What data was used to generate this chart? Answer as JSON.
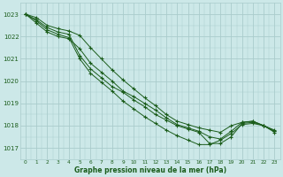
{
  "xlabel": "Graphe pression niveau de la mer (hPa)",
  "bg_color": "#cce8e8",
  "grid_color": "#aacccc",
  "line_color": "#1a5c1a",
  "marker": "+",
  "xlim": [
    -0.5,
    23.5
  ],
  "ylim": [
    1016.5,
    1023.5
  ],
  "yticks": [
    1017,
    1018,
    1019,
    1020,
    1021,
    1022,
    1023
  ],
  "xticks": [
    0,
    1,
    2,
    3,
    4,
    5,
    6,
    7,
    8,
    9,
    10,
    11,
    12,
    13,
    14,
    15,
    16,
    17,
    18,
    19,
    20,
    21,
    22,
    23
  ],
  "series": [
    [
      1023.0,
      1022.75,
      1022.4,
      1022.2,
      1022.1,
      1021.15,
      1020.55,
      1020.15,
      1019.75,
      1019.5,
      1019.15,
      1018.85,
      1018.5,
      1018.25,
      1018.0,
      1017.85,
      1017.7,
      1017.2,
      1017.2,
      1017.5,
      1018.1,
      1018.15,
      1018.0,
      1017.75
    ],
    [
      1023.0,
      1022.7,
      1022.3,
      1022.1,
      1021.95,
      1021.0,
      1020.35,
      1019.95,
      1019.55,
      1019.1,
      1018.75,
      1018.4,
      1018.1,
      1017.8,
      1017.55,
      1017.35,
      1017.15,
      1017.15,
      1017.35,
      1017.65,
      1018.05,
      1018.1,
      1018.0,
      1017.7
    ],
    [
      1023.0,
      1022.6,
      1022.2,
      1022.0,
      1021.9,
      1021.45,
      1020.8,
      1020.4,
      1020.0,
      1019.55,
      1019.3,
      1019.0,
      1018.7,
      1018.35,
      1018.05,
      1017.9,
      1017.75,
      1017.5,
      1017.4,
      1017.75,
      1018.15,
      1018.2,
      1018.0,
      1017.8
    ],
    [
      1023.0,
      1022.85,
      1022.5,
      1022.35,
      1022.25,
      1022.05,
      1021.5,
      1021.0,
      1020.5,
      1020.05,
      1019.65,
      1019.25,
      1018.9,
      1018.5,
      1018.2,
      1018.05,
      1017.9,
      1017.8,
      1017.7,
      1018.0,
      1018.15,
      1018.2,
      1018.0,
      1017.75
    ]
  ]
}
